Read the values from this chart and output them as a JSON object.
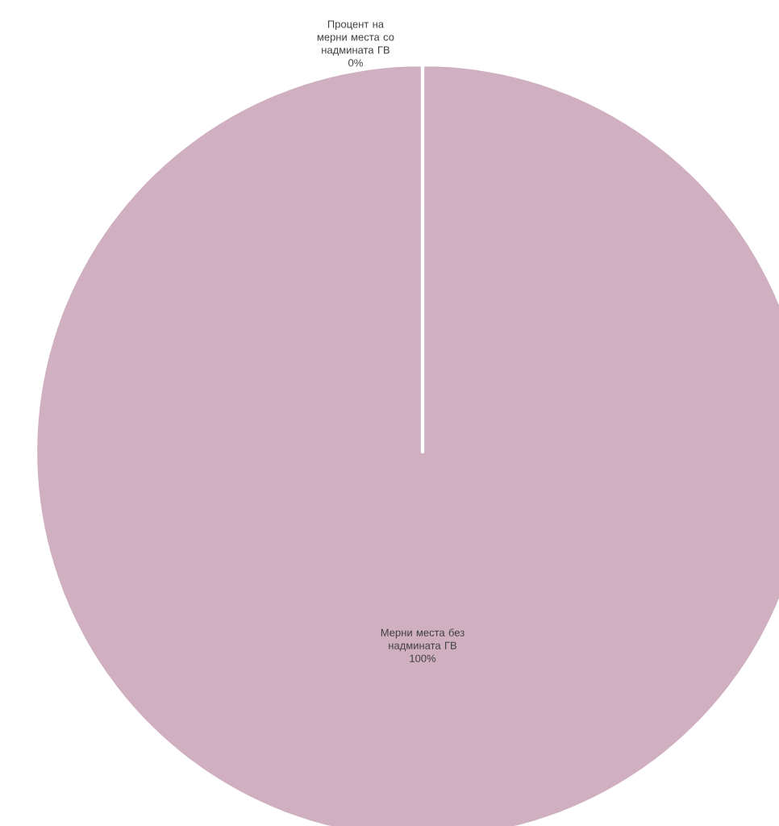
{
  "chart_data": {
    "type": "pie",
    "categories": [
      "Процент на мерни места со надмината ГВ",
      "Мерни места без надмината ГВ"
    ],
    "values": [
      0,
      100
    ],
    "value_labels": [
      "0%",
      "100%"
    ],
    "colors": [
      "#cfafc0",
      "#cfafc0"
    ]
  }
}
